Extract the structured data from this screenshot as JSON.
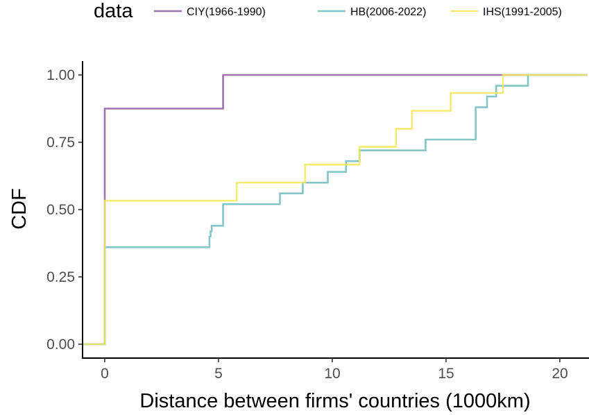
{
  "chart_data": {
    "type": "line",
    "step": true,
    "xlabel": "Distance between firms' countries (1000km)",
    "ylabel": "CDF",
    "xlim": [
      -1,
      21.2
    ],
    "ylim": [
      0,
      1
    ],
    "x_ticks": [
      0,
      5,
      10,
      15,
      20
    ],
    "x_tick_labels": [
      "0",
      "5",
      "10",
      "15",
      "20"
    ],
    "y_ticks": [
      0,
      0.25,
      0.5,
      0.75,
      1
    ],
    "y_tick_labels": [
      "0.00",
      "0.25",
      "0.50",
      "0.75",
      "1.00"
    ],
    "grid": false,
    "legend": {
      "title": "data",
      "position": "top"
    },
    "series": [
      {
        "name": "CIY(1966-1990)",
        "color": "#8e5a9c",
        "x": [
          0,
          5.2
        ],
        "y": [
          0.875,
          1.0
        ]
      },
      {
        "name": "HB(2006-2022)",
        "color": "#6fbcbd",
        "x": [
          0,
          4.6,
          4.65,
          4.7,
          5.2,
          7.7,
          8.7,
          9.8,
          10.6,
          11.2,
          14.1,
          16.3,
          16.8,
          17.2,
          18.6
        ],
        "y": [
          0.36,
          0.4,
          0.42,
          0.44,
          0.52,
          0.56,
          0.6,
          0.64,
          0.68,
          0.72,
          0.76,
          0.88,
          0.92,
          0.96,
          1.0
        ]
      },
      {
        "name": "IHS(1991-2005)",
        "color": "#f4e758",
        "x": [
          0,
          5.8,
          8.8,
          11.2,
          12.8,
          13.5,
          15.2,
          17.5
        ],
        "y": [
          0.533,
          0.6,
          0.667,
          0.733,
          0.8,
          0.867,
          0.933,
          1.0
        ]
      }
    ]
  }
}
